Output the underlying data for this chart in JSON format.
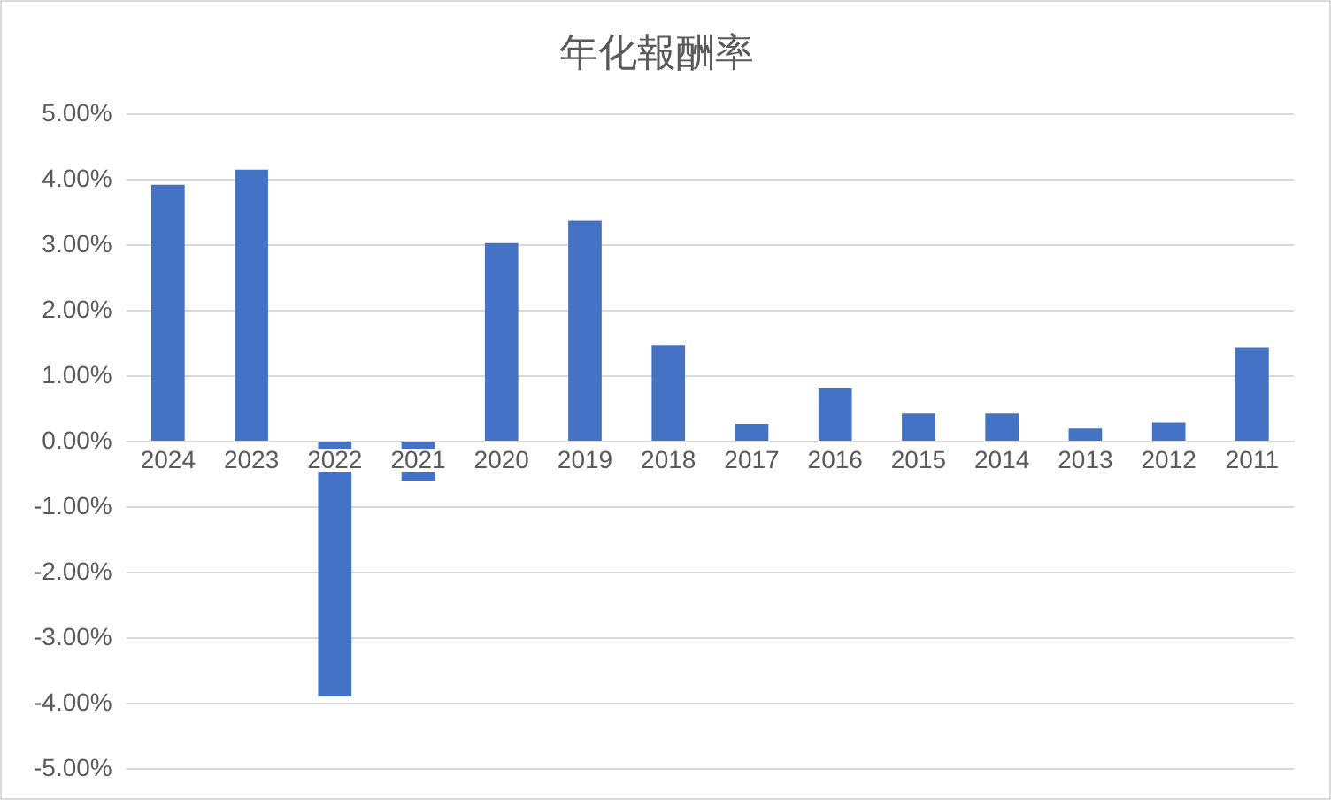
{
  "chart_data": {
    "type": "bar",
    "title": "年化報酬率",
    "categories": [
      "2024",
      "2023",
      "2022",
      "2021",
      "2020",
      "2019",
      "2018",
      "2017",
      "2016",
      "2015",
      "2014",
      "2013",
      "2012",
      "2011"
    ],
    "values": [
      3.92,
      4.15,
      -3.89,
      -0.6,
      3.03,
      3.37,
      1.47,
      0.27,
      0.81,
      0.43,
      0.43,
      0.2,
      0.29,
      1.44
    ],
    "color": "#4472c4",
    "ylim": [
      -5,
      5
    ],
    "yticks": [
      {
        "value": -5,
        "label": "-5.00%"
      },
      {
        "value": -4,
        "label": "-4.00%"
      },
      {
        "value": -3,
        "label": "-3.00%"
      },
      {
        "value": -2,
        "label": "-2.00%"
      },
      {
        "value": -1,
        "label": "-1.00%"
      },
      {
        "value": 0,
        "label": "0.00%"
      },
      {
        "value": 1,
        "label": "1.00%"
      },
      {
        "value": 2,
        "label": "2.00%"
      },
      {
        "value": 3,
        "label": "3.00%"
      },
      {
        "value": 4,
        "label": "4.00%"
      },
      {
        "value": 5,
        "label": "5.00%"
      }
    ],
    "grid": "y"
  }
}
